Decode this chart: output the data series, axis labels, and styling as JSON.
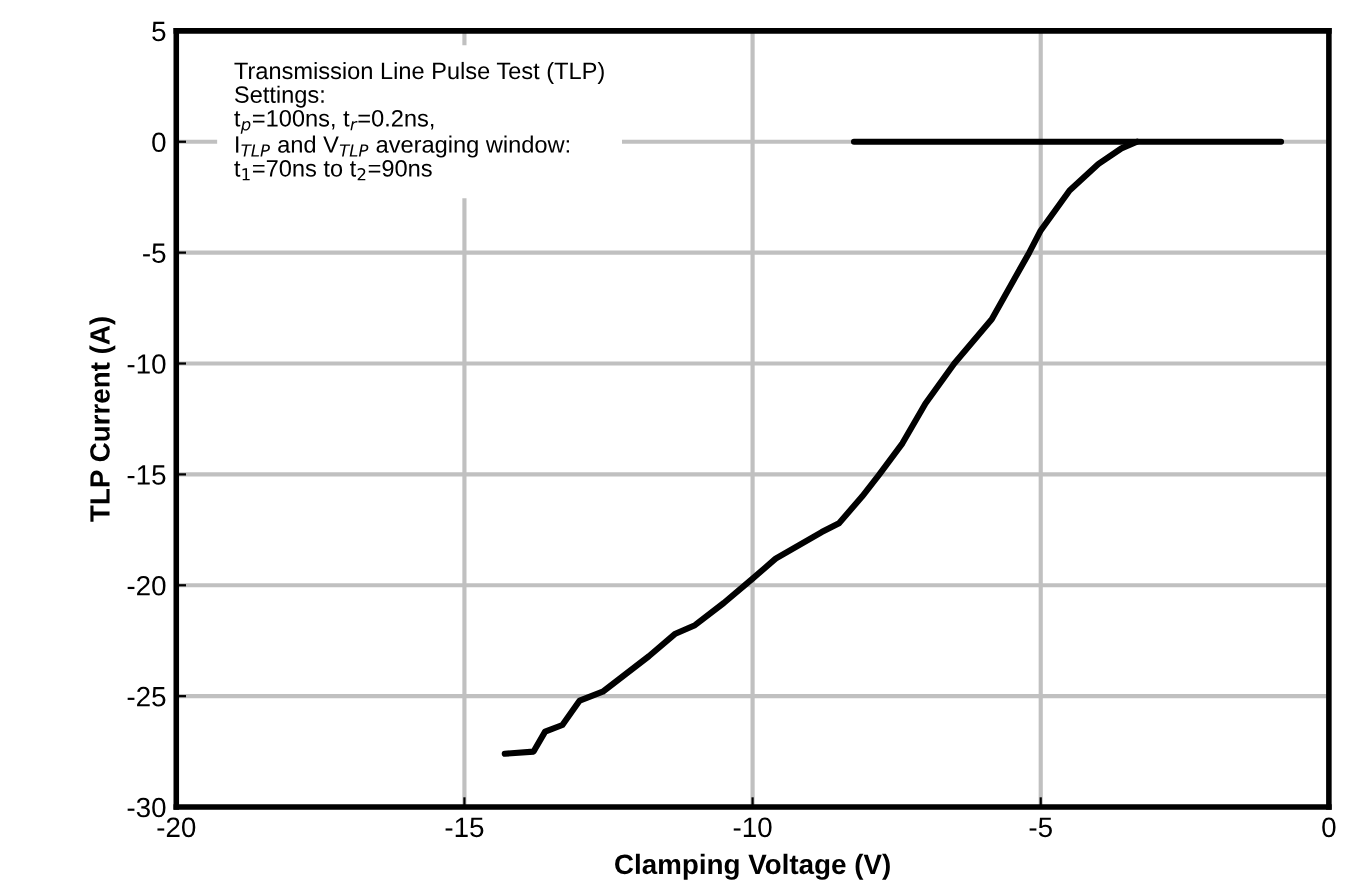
{
  "chart_data": {
    "type": "line",
    "xlabel": "Clamping Voltage (V)",
    "ylabel": "TLP Current (A)",
    "xlim": [
      -20,
      0
    ],
    "xticks": [
      -20,
      -15,
      -10,
      -5,
      0
    ],
    "ylim": [
      -30,
      5
    ],
    "yticks": [
      -30,
      -25,
      -20,
      -15,
      -10,
      -5,
      0,
      5
    ],
    "grid": true,
    "legend": false,
    "marker": "none",
    "line_style": "solid",
    "annotations": [
      "Transmission Line Pulse Test (TLP)\nSettings:\nt$_{p}$=100ns, t$_{r}$=0.2ns,\nI$_{TLP}$ and V$_{TLP}$ averaging window:\nt$_{1}$=70ns to t$_{2}$=90ns"
    ],
    "series": [
      {
        "color": "#000000",
        "x": [
          -14.3,
          -13.8,
          -13.6,
          -13.3,
          -13.0,
          -12.6,
          -12.2,
          -11.8,
          -11.35,
          -11.0,
          -10.5,
          -10.0,
          -9.6,
          -9.2,
          -8.8,
          -8.5,
          -8.1,
          -7.8,
          -7.4,
          -7.0,
          -6.5,
          -5.85,
          -5.2,
          -5.0,
          -4.5,
          -4.0,
          -3.6,
          -3.33
        ],
        "values": [
          -27.6,
          -27.5,
          -26.6,
          -26.3,
          -25.2,
          -24.8,
          -24.0,
          -23.2,
          -22.2,
          -21.8,
          -20.8,
          -19.7,
          -18.8,
          -18.2,
          -17.6,
          -17.2,
          -16.0,
          -15.0,
          -13.6,
          -11.8,
          -10.0,
          -8.0,
          -5.0,
          -4.0,
          -2.2,
          -1.0,
          -0.3,
          0
        ]
      },
      {
        "color": "#000000",
        "x": [
          -8.24,
          -0.83
        ],
        "values": [
          0,
          0
        ]
      }
    ]
  }
}
